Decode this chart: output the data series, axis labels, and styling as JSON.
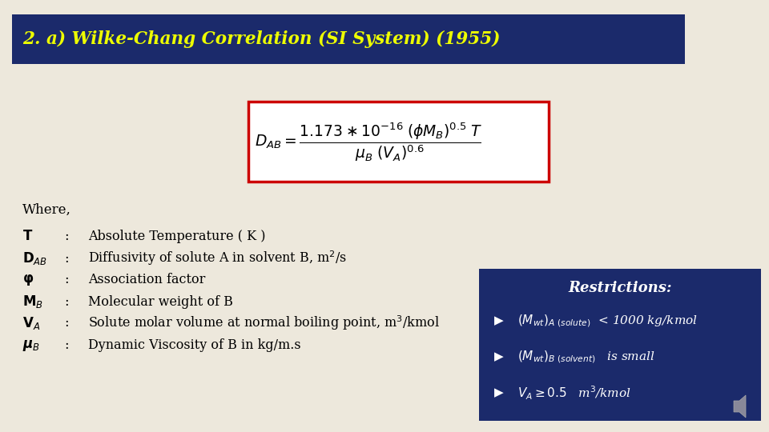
{
  "title": "2. a) Wilke-Chang Correlation (SI System) (1955)",
  "title_color": "#EEFF00",
  "title_bg_color": "#1B2A6B",
  "bg_color": "#EDE8DC",
  "formula_box_color": "#CC0000",
  "restrictions_bg": "#1B2A6B",
  "restrictions_title": "Restrictions:",
  "restriction1_a": "$(M_{wt})$",
  "restriction1_b": "$_{A\\ (solute)}$",
  "restriction1_c": " < 1000 kg/kmol",
  "restriction2_a": "$(M_{wt})$",
  "restriction2_b": "$_{B\\ (solvent)}$",
  "restriction2_c": "   is small",
  "restriction3": "$V_A \\geq 0.5$   m$^3$/kmol",
  "where_text": "Where,",
  "items": [
    {
      "label": "$\\mathbf{T}$",
      "colon": ":",
      "desc": "Absolute Temperature ( K )"
    },
    {
      "label": "$\\mathbf{D}_{AB}$",
      "colon": ":",
      "desc": "Diffusivity of solute A in solvent B, m$^2$/s"
    },
    {
      "label": "$\\boldsymbol{\\varphi}$",
      "colon": ":",
      "desc": "Association factor"
    },
    {
      "label": "$\\mathbf{M}_B$",
      "colon": ":",
      "desc": "Molecular weight of B"
    },
    {
      "label": "$\\mathbf{V}_A$",
      "colon": ":",
      "desc": "Solute molar volume at normal boiling point, m$^3$/kmol"
    },
    {
      "label": "$\\boldsymbol{\\mu}_B$",
      "colon": ":",
      "desc": "Dynamic Viscosity of B in kg/m.s"
    }
  ],
  "figw": 9.6,
  "figh": 5.4,
  "dpi": 100
}
